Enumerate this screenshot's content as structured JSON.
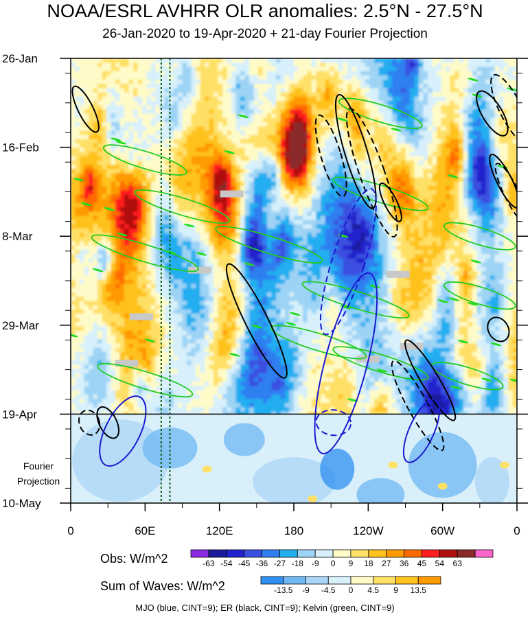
{
  "chart_data": {
    "type": "heatmap",
    "title": "NOAA/ESRL AVHRR OLR anomalies: 2.5°N - 27.5°N",
    "subtitle": "26-Jan-2020 to 19-Apr-2020 + 21-day Fourier Projection",
    "y_ticks": [
      "26-Jan",
      "16-Feb",
      "8-Mar",
      "29-Mar",
      "19-Apr",
      "10-May"
    ],
    "y_tick_days": [
      0,
      21,
      42,
      63,
      84,
      105
    ],
    "x_ticks": [
      "0",
      "60E",
      "120E",
      "180",
      "120W",
      "60W",
      "0"
    ],
    "x_tick_lons": [
      0,
      60,
      120,
      180,
      240,
      300,
      360
    ],
    "observation_end_day": 84,
    "projection_label": "Fourier Projection",
    "obs_colorbar": {
      "label": "Obs: W/m^2",
      "levels": [
        "-63",
        "-54",
        "-45",
        "-36",
        "-27",
        "-18",
        "-9",
        "0",
        "9",
        "18",
        "27",
        "36",
        "45",
        "54",
        "63"
      ],
      "colors": [
        "#8a2be2",
        "#1a1a9a",
        "#2222cc",
        "#3a50e0",
        "#2f7ff0",
        "#23aef0",
        "#9dd3f5",
        "#d7f0fb",
        "#fffbc8",
        "#ffe066",
        "#ffc21f",
        "#ff9a00",
        "#ff6a00",
        "#ff1f1f",
        "#b01010",
        "#8b2a2a",
        "#ff66cc"
      ]
    },
    "waves_colorbar": {
      "label": "Sum of Waves: W/m^2",
      "levels": [
        "-13.5",
        "-9",
        "-4.5",
        "0",
        "4.5",
        "9",
        "13.5"
      ],
      "colors": [
        "#2f8ff0",
        "#6fb8f3",
        "#a9d6f6",
        "#d9f0fb",
        "#fffac8",
        "#ffe066",
        "#ffc21f",
        "#ff9a00"
      ]
    },
    "wave_legend": "MJO (blue, CINT=9); ER (black, CINT=9); Kelvin (green, CINT=9)",
    "mjo_contours": [
      {
        "lon": 222,
        "day": 72,
        "rlon": 17,
        "rday": 22,
        "tilt": -0.26,
        "dashed": false
      },
      {
        "lon": 224,
        "day": 48,
        "rlon": 13,
        "rday": 18,
        "tilt": -0.32,
        "dashed": true
      },
      {
        "lon": 42,
        "day": 88,
        "rlon": 14,
        "rday": 9,
        "tilt": -0.5,
        "dashed": false
      },
      {
        "lon": 283,
        "day": 88,
        "rlon": 10,
        "rday": 8,
        "tilt": -0.45,
        "dashed": false
      },
      {
        "lon": 212,
        "day": 86,
        "rlon": 14,
        "rday": 3,
        "tilt": -0.1,
        "dashed": true
      }
    ],
    "er_contours": [
      {
        "lon": 150,
        "day": 62,
        "rlon": 9,
        "rday": 15,
        "tilt": 0.5,
        "dashed": false
      },
      {
        "lon": 230,
        "day": 22,
        "rlon": 9,
        "rday": 14,
        "tilt": 0.3,
        "dashed": false
      },
      {
        "lon": 243,
        "day": 27,
        "rlon": 10,
        "rday": 16,
        "tilt": 0.35,
        "dashed": true
      },
      {
        "lon": 210,
        "day": 23,
        "rlon": 8,
        "rday": 10,
        "tilt": 0.3,
        "dashed": true
      },
      {
        "lon": 258,
        "day": 34,
        "rlon": 5,
        "rday": 5,
        "tilt": 0.5,
        "dashed": false
      },
      {
        "lon": 290,
        "day": 76,
        "rlon": 7,
        "rday": 11,
        "tilt": 0.6,
        "dashed": false
      },
      {
        "lon": 280,
        "day": 82,
        "rlon": 8,
        "rday": 12,
        "tilt": 0.55,
        "dashed": true
      },
      {
        "lon": 340,
        "day": 13,
        "rlon": 8,
        "rday": 6,
        "tilt": 0.6,
        "dashed": false
      },
      {
        "lon": 355,
        "day": 12,
        "rlon": 9,
        "rday": 9,
        "tilt": 0.5,
        "dashed": true
      },
      {
        "lon": 350,
        "day": 29,
        "rlon": 6,
        "rday": 7,
        "tilt": 0.5,
        "dashed": false
      },
      {
        "lon": 356,
        "day": 32,
        "rlon": 6,
        "rday": 8,
        "tilt": 0.5,
        "dashed": true
      },
      {
        "lon": 12,
        "day": 12,
        "rlon": 6,
        "rday": 6,
        "tilt": 0.5,
        "dashed": false
      },
      {
        "lon": 30,
        "day": 86,
        "rlon": 7,
        "rday": 4,
        "tilt": 0.5,
        "dashed": false
      },
      {
        "lon": 15,
        "day": 86,
        "rlon": 8,
        "rday": 3,
        "tilt": 0.4,
        "dashed": true
      },
      {
        "lon": 345,
        "day": 64,
        "rlon": 8,
        "rday": 3,
        "tilt": 0.6,
        "dashed": false
      }
    ],
    "kelvin_contours": [
      {
        "lon": 60,
        "day": 24,
        "rlon": 35,
        "rday": 2,
        "tilt": 0.3
      },
      {
        "lon": 90,
        "day": 35,
        "rlon": 40,
        "rday": 2,
        "tilt": 0.3
      },
      {
        "lon": 160,
        "day": 44,
        "rlon": 45,
        "rday": 2,
        "tilt": 0.32
      },
      {
        "lon": 60,
        "day": 46,
        "rlon": 45,
        "rday": 2,
        "tilt": 0.3
      },
      {
        "lon": 230,
        "day": 57,
        "rlon": 45,
        "rday": 2,
        "tilt": 0.32
      },
      {
        "lon": 250,
        "day": 72,
        "rlon": 40,
        "rday": 2,
        "tilt": 0.3
      },
      {
        "lon": 200,
        "day": 67,
        "rlon": 40,
        "rday": 2,
        "tilt": 0.3
      },
      {
        "lon": 250,
        "day": 13,
        "rlon": 35,
        "rday": 2,
        "tilt": 0.3
      },
      {
        "lon": 250,
        "day": 32,
        "rlon": 40,
        "rday": 2,
        "tilt": 0.32
      },
      {
        "lon": 60,
        "day": 76,
        "rlon": 40,
        "rday": 2,
        "tilt": 0.3
      },
      {
        "lon": 330,
        "day": 42,
        "rlon": 30,
        "rday": 2,
        "tilt": 0.3
      },
      {
        "lon": 330,
        "day": 56,
        "rlon": 30,
        "rday": 2,
        "tilt": 0.3
      },
      {
        "lon": 320,
        "day": 75,
        "rlon": 30,
        "rday": 2,
        "tilt": 0.3
      }
    ],
    "missing_data_boxes": [
      {
        "lon": 130,
        "day": 32
      },
      {
        "lon": 104,
        "day": 50
      },
      {
        "lon": 57,
        "day": 61
      },
      {
        "lon": 45,
        "day": 72
      },
      {
        "lon": 264,
        "day": 51
      },
      {
        "lon": 240,
        "day": 71
      },
      {
        "lon": 275,
        "day": 68
      }
    ],
    "mjo_phase_lines_lon": [
      73,
      80
    ]
  }
}
